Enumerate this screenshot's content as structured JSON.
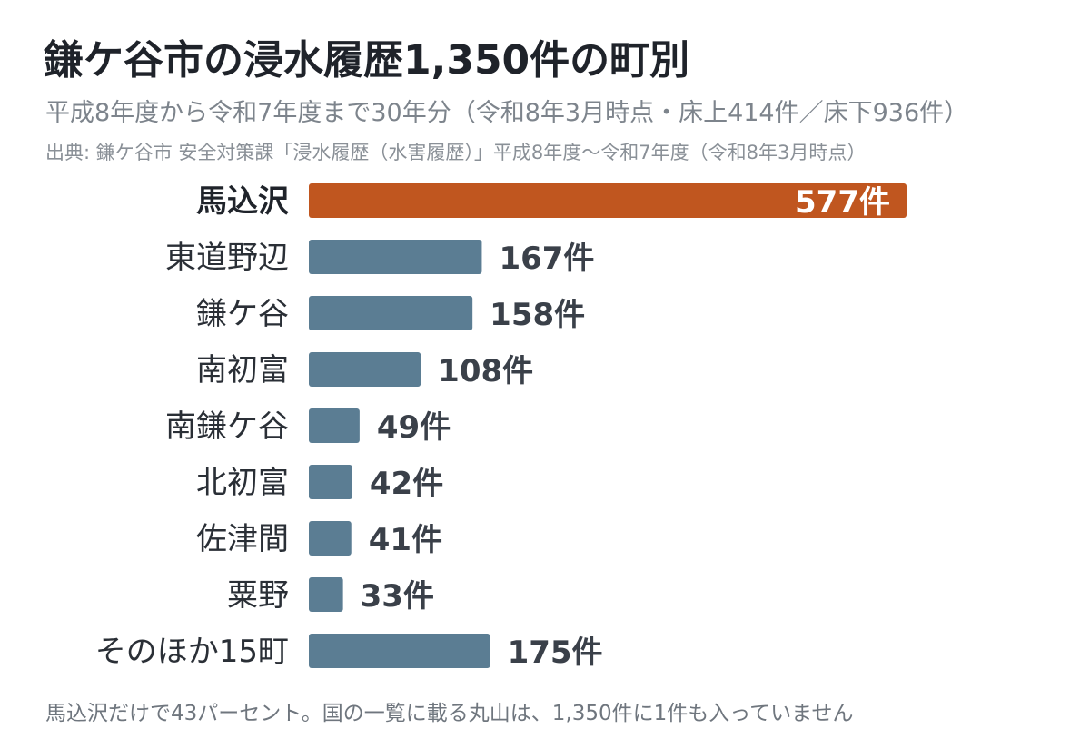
{
  "title": "鎌ケ谷市の浸水履歴1,350件の町別",
  "subtitle": "平成8年度から令和7年度まで30年分（令和8年3月時点・床上414件／床下936件）",
  "source": "出典: 鎌ケ谷市 安全対策課「浸水履歴（水害履歴）」平成8年度〜令和7年度（令和8年3月時点）",
  "footnote": "馬込沢だけで43パーセント。国の一覧に載る丸山は、1,350件に1件も入っていません",
  "colors": {
    "highlight": "#c0561f",
    "default": "#5b7d93"
  },
  "chart_data": {
    "type": "bar",
    "orientation": "horizontal",
    "categories": [
      "馬込沢",
      "東道野辺",
      "鎌ケ谷",
      "南初富",
      "南鎌ケ谷",
      "北初富",
      "佐津間",
      "粟野",
      "そのほか15町"
    ],
    "values": [
      577,
      167,
      158,
      108,
      49,
      42,
      41,
      33,
      175
    ],
    "value_labels": [
      "577件",
      "167件",
      "158件",
      "108件",
      "49件",
      "42件",
      "41件",
      "33件",
      "175件"
    ],
    "highlight_index": 0,
    "xlim": [
      0,
      577
    ],
    "grid": false,
    "legend": "none"
  }
}
